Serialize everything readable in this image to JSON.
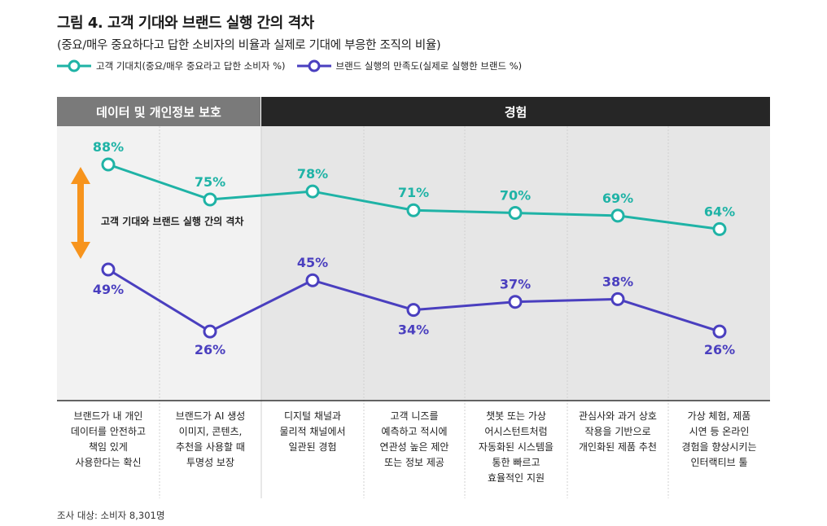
{
  "title": "그림 4. 고객 기대와 브랜드 실행 간의 격차",
  "subtitle": "(중요/매우 중요하다고 답한 소비자의 비율과 실제로 기대에 부응한 조직의 비율)",
  "headers": {
    "group_a": "데이터 및 개인정보 보호",
    "group_b": "경험"
  },
  "gap_label": "고객 기대와 브랜드 실행 간의 격차",
  "source": "조사 대상: 소비자 8,301명",
  "colors": {
    "teal": "#1fb3a6",
    "purple": "#4a3fbf",
    "orange": "#f7941d",
    "bg_a": "#f2f2f2",
    "bg_b": "#e6e6e6"
  },
  "chart_data": {
    "type": "line",
    "ylim": [
      0,
      100
    ],
    "categories": [
      "브랜드가 내 개인\n데이터를 안전하고\n책임 있게\n사용한다는 확신",
      "브랜드가 AI 생성\n이미지, 콘텐츠,\n추천을 사용할 때\n투명성 보장",
      "디지털 채널과\n물리적 채널에서\n일관된 경험",
      "고객 니즈를\n예측하고 적시에\n연관성 높은 제안\n또는 정보 제공",
      "챗봇 또는 가상\n어시스턴트처럼\n자동화된 시스템을\n통한 빠르고\n효율적인 지원",
      "관심사와 과거 상호\n작용을 기반으로\n개인화된 제품 추천",
      "가상 체험, 제품\n시연 등 온라인\n경험을 향상시키는\n인터랙티브 툴"
    ],
    "series": [
      {
        "name": "고객 기대치(중요/매우 중요라고 답한 소비자 %)",
        "color": "#1fb3a6",
        "values": [
          88,
          75,
          78,
          71,
          70,
          69,
          64
        ],
        "labels": [
          "88%",
          "75%",
          "78%",
          "71%",
          "70%",
          "69%",
          "64%"
        ]
      },
      {
        "name": "브랜드 실행의 만족도(실제로 실행한 브랜드 %)",
        "color": "#4a3fbf",
        "values": [
          49,
          26,
          45,
          34,
          37,
          38,
          26
        ],
        "labels": [
          "49%",
          "26%",
          "45%",
          "34%",
          "37%",
          "38%",
          "26%"
        ]
      }
    ]
  }
}
